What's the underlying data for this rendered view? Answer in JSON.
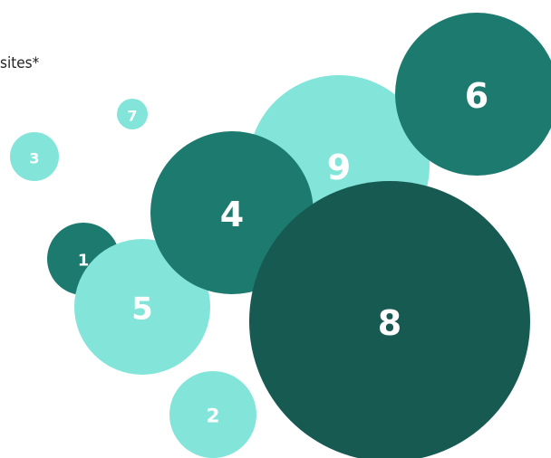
{
  "chart_data": {
    "type": "bubble",
    "title": "sites*",
    "colors": {
      "light": "#83e5da",
      "mid": "#1c7a6f",
      "dark": "#165a52",
      "label": "#ffffff"
    },
    "bubbles": [
      {
        "label": "3",
        "tone": "light"
      },
      {
        "label": "7",
        "tone": "light"
      },
      {
        "label": "1",
        "tone": "mid"
      },
      {
        "label": "5",
        "tone": "light"
      },
      {
        "label": "2",
        "tone": "light"
      },
      {
        "label": "9",
        "tone": "light"
      },
      {
        "label": "4",
        "tone": "mid"
      },
      {
        "label": "6",
        "tone": "mid"
      },
      {
        "label": "8",
        "tone": "dark"
      }
    ]
  }
}
